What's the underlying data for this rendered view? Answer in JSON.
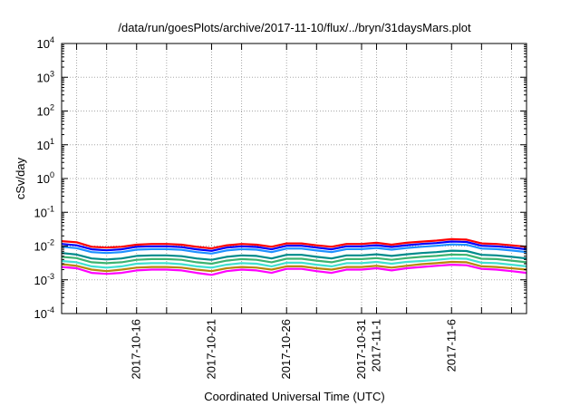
{
  "chart_data": {
    "type": "line",
    "title": "/data/run/goesPlots/archive/2017-11-10/flux/../bryn/31daysMars.plot",
    "xlabel": "Coordinated Universal Time (UTC)",
    "ylabel": "cSv/day",
    "y_scale": "log",
    "ylim": [
      0.0001,
      10000
    ],
    "xlim": [
      "2017-10-11",
      "2017-11-11"
    ],
    "grid": true,
    "legend": "none",
    "y_ticks": [
      {
        "value": 0.0001,
        "base": "10",
        "exp": "-4"
      },
      {
        "value": 0.001,
        "base": "10",
        "exp": "-3"
      },
      {
        "value": 0.01,
        "base": "10",
        "exp": "-2"
      },
      {
        "value": 0.1,
        "base": "10",
        "exp": "-1"
      },
      {
        "value": 1,
        "base": "10",
        "exp": "0"
      },
      {
        "value": 10,
        "base": "10",
        "exp": "1"
      },
      {
        "value": 100,
        "base": "10",
        "exp": "2"
      },
      {
        "value": 1000,
        "base": "10",
        "exp": "3"
      },
      {
        "value": 10000,
        "base": "10",
        "exp": "4"
      }
    ],
    "x_ticks": [
      {
        "value": "2017-10-12",
        "label": ""
      },
      {
        "value": "2017-10-14",
        "label": ""
      },
      {
        "value": "2017-10-16",
        "label": "2017-10-16"
      },
      {
        "value": "2017-10-18",
        "label": ""
      },
      {
        "value": "2017-10-21",
        "label": "2017-10-21"
      },
      {
        "value": "2017-10-23",
        "label": ""
      },
      {
        "value": "2017-10-26",
        "label": "2017-10-26"
      },
      {
        "value": "2017-10-28",
        "label": ""
      },
      {
        "value": "2017-10-31",
        "label": "2017-10-31"
      },
      {
        "value": "2017-11-01",
        "label": "2017-11-1"
      },
      {
        "value": "2017-11-03",
        "label": ""
      },
      {
        "value": "2017-11-06",
        "label": "2017-11-6"
      },
      {
        "value": "2017-11-08",
        "label": ""
      },
      {
        "value": "2017-11-10",
        "label": ""
      }
    ],
    "x": [
      "2017-10-11",
      "2017-10-12",
      "2017-10-13",
      "2017-10-14",
      "2017-10-15",
      "2017-10-16",
      "2017-10-17",
      "2017-10-18",
      "2017-10-19",
      "2017-10-20",
      "2017-10-21",
      "2017-10-22",
      "2017-10-23",
      "2017-10-24",
      "2017-10-25",
      "2017-10-26",
      "2017-10-27",
      "2017-10-28",
      "2017-10-29",
      "2017-10-30",
      "2017-10-31",
      "2017-11-01",
      "2017-11-02",
      "2017-11-03",
      "2017-11-04",
      "2017-11-05",
      "2017-11-06",
      "2017-11-07",
      "2017-11-08",
      "2017-11-09",
      "2017-11-10",
      "2017-11-11"
    ],
    "series": [
      {
        "color": "#ff0000",
        "values": [
          0.014,
          0.013,
          0.0095,
          0.009,
          0.0095,
          0.011,
          0.0115,
          0.0115,
          0.011,
          0.0095,
          0.0085,
          0.0105,
          0.0115,
          0.011,
          0.0095,
          0.012,
          0.012,
          0.0105,
          0.0095,
          0.0115,
          0.0115,
          0.0125,
          0.011,
          0.0125,
          0.0135,
          0.0145,
          0.016,
          0.0155,
          0.012,
          0.0115,
          0.0105,
          0.0095
        ]
      },
      {
        "color": "#0000ff",
        "values": [
          0.0115,
          0.0105,
          0.008,
          0.0075,
          0.008,
          0.0095,
          0.0098,
          0.0098,
          0.0093,
          0.008,
          0.0072,
          0.009,
          0.0098,
          0.0094,
          0.008,
          0.0102,
          0.0102,
          0.009,
          0.008,
          0.0098,
          0.0098,
          0.0106,
          0.0094,
          0.0106,
          0.0115,
          0.0123,
          0.0136,
          0.0132,
          0.0102,
          0.0098,
          0.009,
          0.008
        ]
      },
      {
        "color": "#1e90ff",
        "values": [
          0.0095,
          0.0087,
          0.0066,
          0.0062,
          0.0066,
          0.0078,
          0.0081,
          0.0081,
          0.0077,
          0.0066,
          0.006,
          0.0074,
          0.0081,
          0.0078,
          0.0066,
          0.0084,
          0.0084,
          0.0074,
          0.0066,
          0.0081,
          0.0081,
          0.0088,
          0.0078,
          0.0088,
          0.0095,
          0.0102,
          0.0112,
          0.0109,
          0.0084,
          0.0081,
          0.0074,
          0.0066
        ]
      },
      {
        "color": "#008b8b",
        "values": [
          0.0062,
          0.0056,
          0.0043,
          0.004,
          0.0043,
          0.0051,
          0.0053,
          0.0053,
          0.005,
          0.0043,
          0.0039,
          0.0048,
          0.0053,
          0.0051,
          0.0043,
          0.0055,
          0.0055,
          0.0048,
          0.0043,
          0.0053,
          0.0053,
          0.0057,
          0.0051,
          0.0057,
          0.0062,
          0.0066,
          0.0073,
          0.0071,
          0.0055,
          0.0053,
          0.0048,
          0.0043
        ]
      },
      {
        "color": "#3cb371",
        "values": [
          0.0048,
          0.0044,
          0.0033,
          0.0031,
          0.0033,
          0.0039,
          0.0041,
          0.0041,
          0.0039,
          0.0033,
          0.003,
          0.0037,
          0.0041,
          0.0039,
          0.0033,
          0.0042,
          0.0042,
          0.0037,
          0.0033,
          0.0041,
          0.0041,
          0.0044,
          0.0039,
          0.0044,
          0.0048,
          0.0051,
          0.0056,
          0.0055,
          0.0042,
          0.0041,
          0.0037,
          0.0033
        ]
      },
      {
        "color": "#40e0d0",
        "values": [
          0.0036,
          0.0033,
          0.0025,
          0.0023,
          0.0025,
          0.003,
          0.0031,
          0.0031,
          0.0029,
          0.0025,
          0.0023,
          0.0028,
          0.0031,
          0.003,
          0.0025,
          0.0032,
          0.0032,
          0.0028,
          0.0025,
          0.0031,
          0.0031,
          0.0034,
          0.003,
          0.0034,
          0.0036,
          0.0039,
          0.0043,
          0.0042,
          0.0032,
          0.0031,
          0.0028,
          0.0025
        ]
      },
      {
        "color": "#b8860b",
        "values": [
          0.0029,
          0.0026,
          0.002,
          0.0018,
          0.002,
          0.0023,
          0.0024,
          0.0024,
          0.0023,
          0.002,
          0.0018,
          0.0022,
          0.0024,
          0.0023,
          0.002,
          0.0025,
          0.0025,
          0.0022,
          0.002,
          0.0024,
          0.0024,
          0.0026,
          0.0023,
          0.0026,
          0.0029,
          0.0031,
          0.0034,
          0.0033,
          0.0025,
          0.0024,
          0.0022,
          0.002
        ]
      },
      {
        "color": "#ff00ff",
        "values": [
          0.0024,
          0.0022,
          0.0016,
          0.0015,
          0.0016,
          0.0019,
          0.002,
          0.002,
          0.0019,
          0.0016,
          0.0014,
          0.0018,
          0.002,
          0.0019,
          0.0016,
          0.0021,
          0.0021,
          0.0018,
          0.0016,
          0.002,
          0.002,
          0.0022,
          0.0019,
          0.0022,
          0.0024,
          0.0026,
          0.0028,
          0.0027,
          0.0021,
          0.002,
          0.0018,
          0.0016
        ]
      }
    ]
  }
}
